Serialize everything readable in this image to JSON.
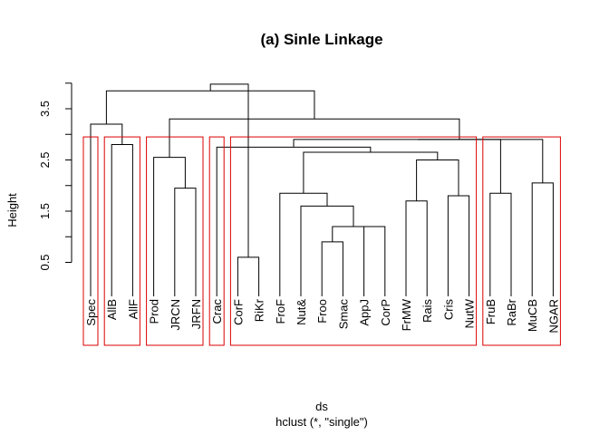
{
  "chart_data": {
    "type": "dendrogram",
    "title": "(a) Sinle Linkage",
    "xlabel": "ds",
    "sublabel": "hclust (*, \"single\")",
    "ylabel": "Height",
    "yticks": [
      0.5,
      1.5,
      2.5,
      3.5
    ],
    "ylim": [
      0,
      4.0
    ],
    "leaves": [
      "Spec",
      "AllB",
      "AllF",
      "Prod",
      "JRCN",
      "JRFN",
      "Crac",
      "CorF",
      "RiKr",
      "FroF",
      "Nut&",
      "Froo",
      "Smac",
      "AppJ",
      "CorP",
      "FrMW",
      "Rais",
      "Cris",
      "NutW",
      "FruB",
      "RaBr",
      "MuCB",
      "NGAR"
    ],
    "merges": [
      {
        "a": "L7",
        "b": "L8",
        "height": 0.6
      },
      {
        "a": "L11",
        "b": "L12",
        "height": 0.9
      },
      {
        "a": "L13",
        "b": "L14",
        "height": 1.2
      },
      {
        "a": "M1",
        "b": "M2",
        "height": 1.2
      },
      {
        "a": "L10",
        "b": "M3",
        "height": 1.6
      },
      {
        "a": "L15",
        "b": "L16",
        "height": 1.7
      },
      {
        "a": "L17",
        "b": "L18",
        "height": 1.8
      },
      {
        "a": "L9",
        "b": "M4",
        "height": 1.85
      },
      {
        "a": "L19",
        "b": "L20",
        "height": 1.85
      },
      {
        "a": "L4",
        "b": "L5",
        "height": 1.95
      },
      {
        "a": "L21",
        "b": "L22",
        "height": 2.05
      },
      {
        "a": "M5",
        "b": "M6",
        "height": 2.5
      },
      {
        "a": "L3",
        "b": "M9",
        "height": 2.55
      },
      {
        "a": "M7",
        "b": "M11",
        "height": 2.65
      },
      {
        "a": "L1",
        "b": "L2",
        "height": 2.8
      },
      {
        "a": "L6",
        "b": "M13",
        "height": 2.75
      },
      {
        "a": "M15",
        "b": "M10",
        "height": 2.9
      },
      {
        "a": "M16",
        "b": "M8",
        "height": 2.9
      },
      {
        "a": "L0",
        "b": "M14",
        "height": 3.2
      },
      {
        "a": "M12",
        "b": "M17",
        "height": 3.3
      },
      {
        "a": "M19",
        "b": "M18",
        "height": 3.85
      },
      {
        "a": "M20",
        "b": "M0",
        "height": 3.98
      }
    ],
    "clusters": [
      {
        "first": 0,
        "last": 0
      },
      {
        "first": 1,
        "last": 2
      },
      {
        "first": 3,
        "last": 5
      },
      {
        "first": 6,
        "last": 6
      },
      {
        "first": 7,
        "last": 18
      },
      {
        "first": 19,
        "last": 22
      }
    ],
    "cut_height": 2.95,
    "colors": {
      "tree": "#000000",
      "box": "#dd0000",
      "axis": "#000000"
    }
  }
}
